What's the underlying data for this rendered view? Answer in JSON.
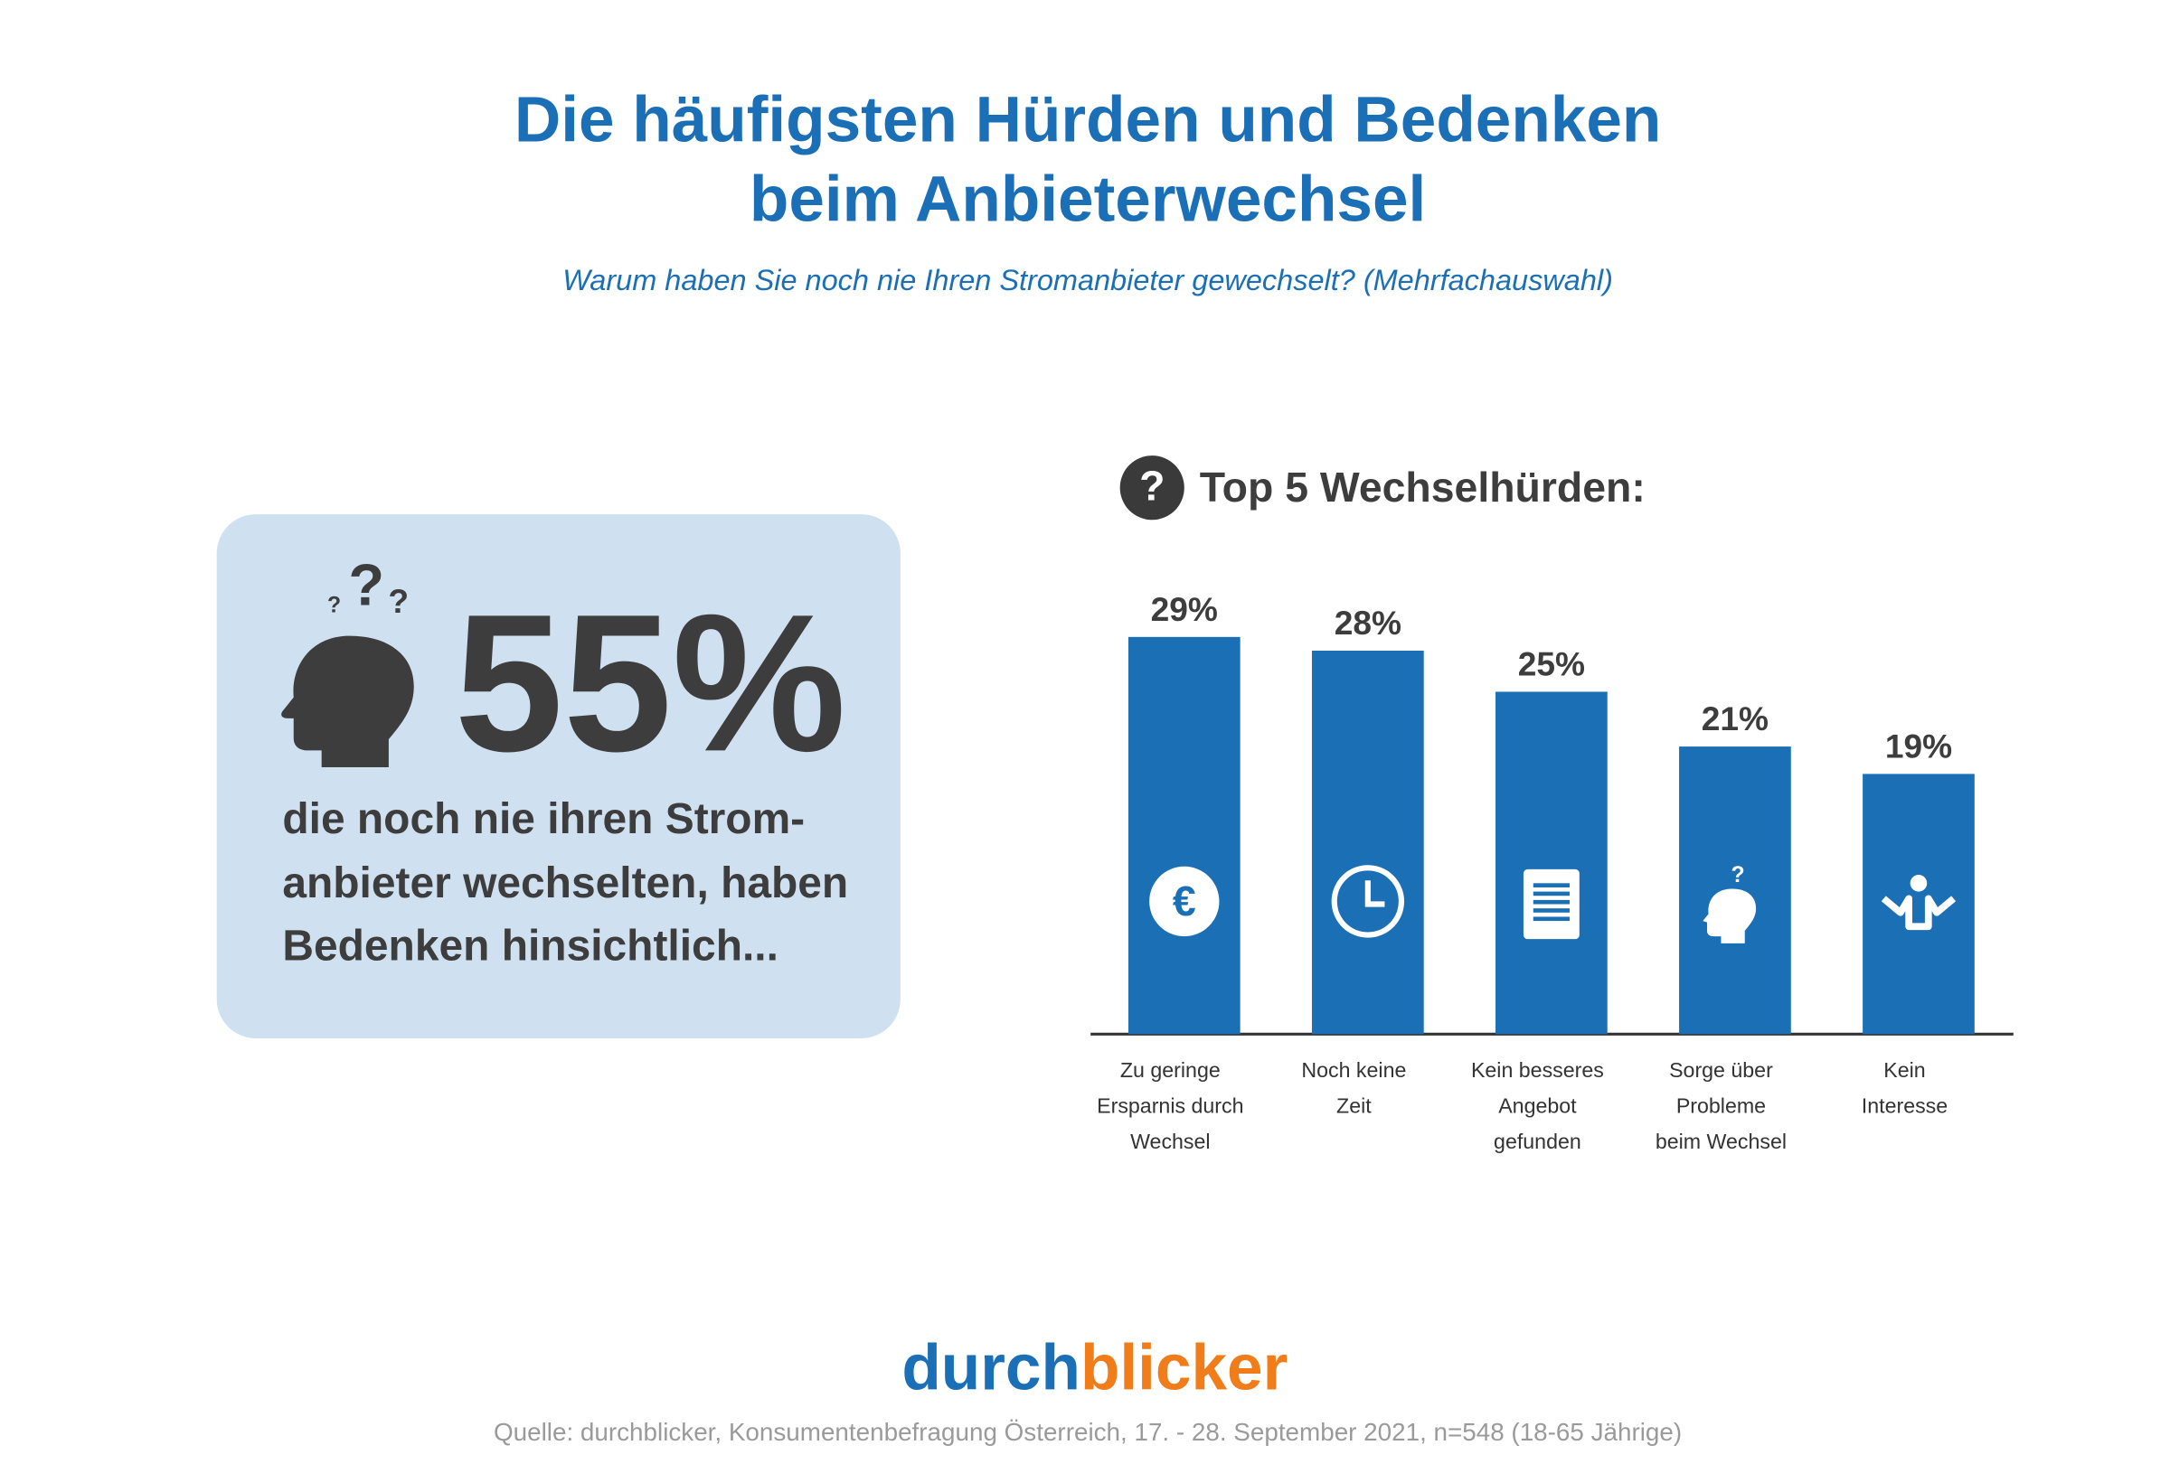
{
  "title": [
    "Die häufigsten Hürden und Bedenken",
    "beim Anbieterwechsel"
  ],
  "subtitle": "Warum haben Sie noch nie Ihren Stromanbieter gewechselt?  (Mehrfachauswahl)",
  "highlight": {
    "figure": "55%",
    "lines": [
      "die noch nie ihren Strom-",
      "anbieter wechselten, haben",
      "Bedenken hinsichtlich..."
    ]
  },
  "chart_data": {
    "type": "bar",
    "title": "Top 5 Wechselhürden:",
    "categories": [
      [
        "Zu geringe",
        "Ersparnis durch",
        "Wechsel"
      ],
      [
        "Noch keine",
        "Zeit"
      ],
      [
        "Kein besseres",
        "Angebot",
        "gefunden"
      ],
      [
        "Sorge über",
        "Probleme",
        "beim Wechsel"
      ],
      [
        "Kein",
        "Interesse"
      ]
    ],
    "values": [
      29,
      28,
      25,
      21,
      19
    ],
    "value_labels": [
      "29%",
      "28%",
      "25%",
      "21%",
      "19%"
    ],
    "color": "#1a6fb5"
  },
  "footer": {
    "brand": [
      "durch",
      "blicker"
    ],
    "source": "Quelle: durchblicker, Konsumentenbefragung Österreich, 17. - 28. September 2021, n=548 (18-65 Jährige)"
  }
}
